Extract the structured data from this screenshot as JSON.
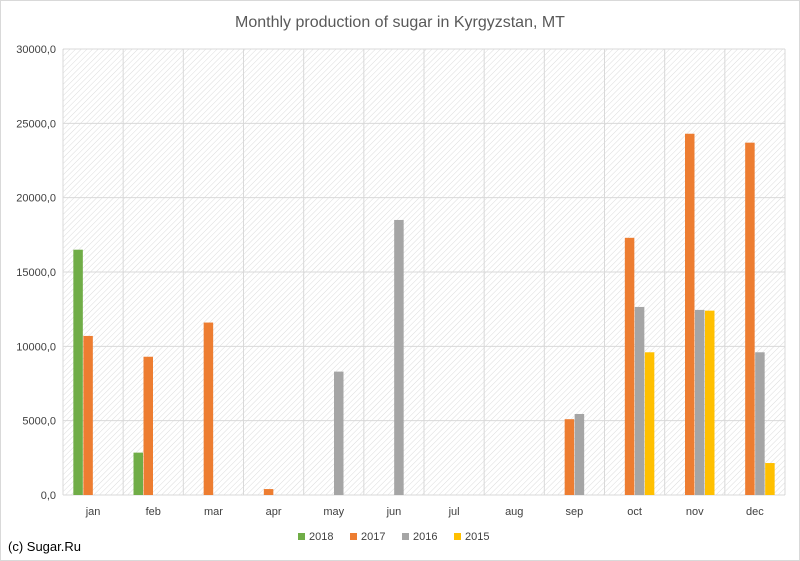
{
  "chart_data": {
    "type": "bar",
    "title": "Monthly production of sugar in Kyrgyzstan, MT",
    "categories": [
      "jan",
      "feb",
      "mar",
      "apr",
      "may",
      "jun",
      "jul",
      "aug",
      "sep",
      "oct",
      "nov",
      "dec"
    ],
    "yticks": [
      "0,0",
      "5000,0",
      "10000,0",
      "15000,0",
      "20000,0",
      "25000,0",
      "30000,0"
    ],
    "ylim": [
      0,
      30000
    ],
    "grid": true,
    "legend_position": "bottom",
    "series": [
      {
        "name": "2018",
        "color": "#70ad47",
        "values": [
          16500,
          2850,
          null,
          null,
          null,
          null,
          null,
          null,
          null,
          null,
          null,
          null
        ]
      },
      {
        "name": "2017",
        "color": "#ed7d31",
        "values": [
          10700,
          9300,
          11600,
          400,
          null,
          null,
          null,
          null,
          5100,
          17300,
          24300,
          23700
        ]
      },
      {
        "name": "2016",
        "color": "#a5a5a5",
        "values": [
          null,
          null,
          null,
          null,
          8300,
          18500,
          null,
          null,
          5450,
          12650,
          12450,
          9600
        ]
      },
      {
        "name": "2015",
        "color": "#ffc000",
        "values": [
          null,
          null,
          null,
          null,
          null,
          null,
          null,
          null,
          null,
          9600,
          12400,
          2150
        ]
      }
    ]
  },
  "footer": {
    "credit": "(c) Sugar.Ru"
  }
}
